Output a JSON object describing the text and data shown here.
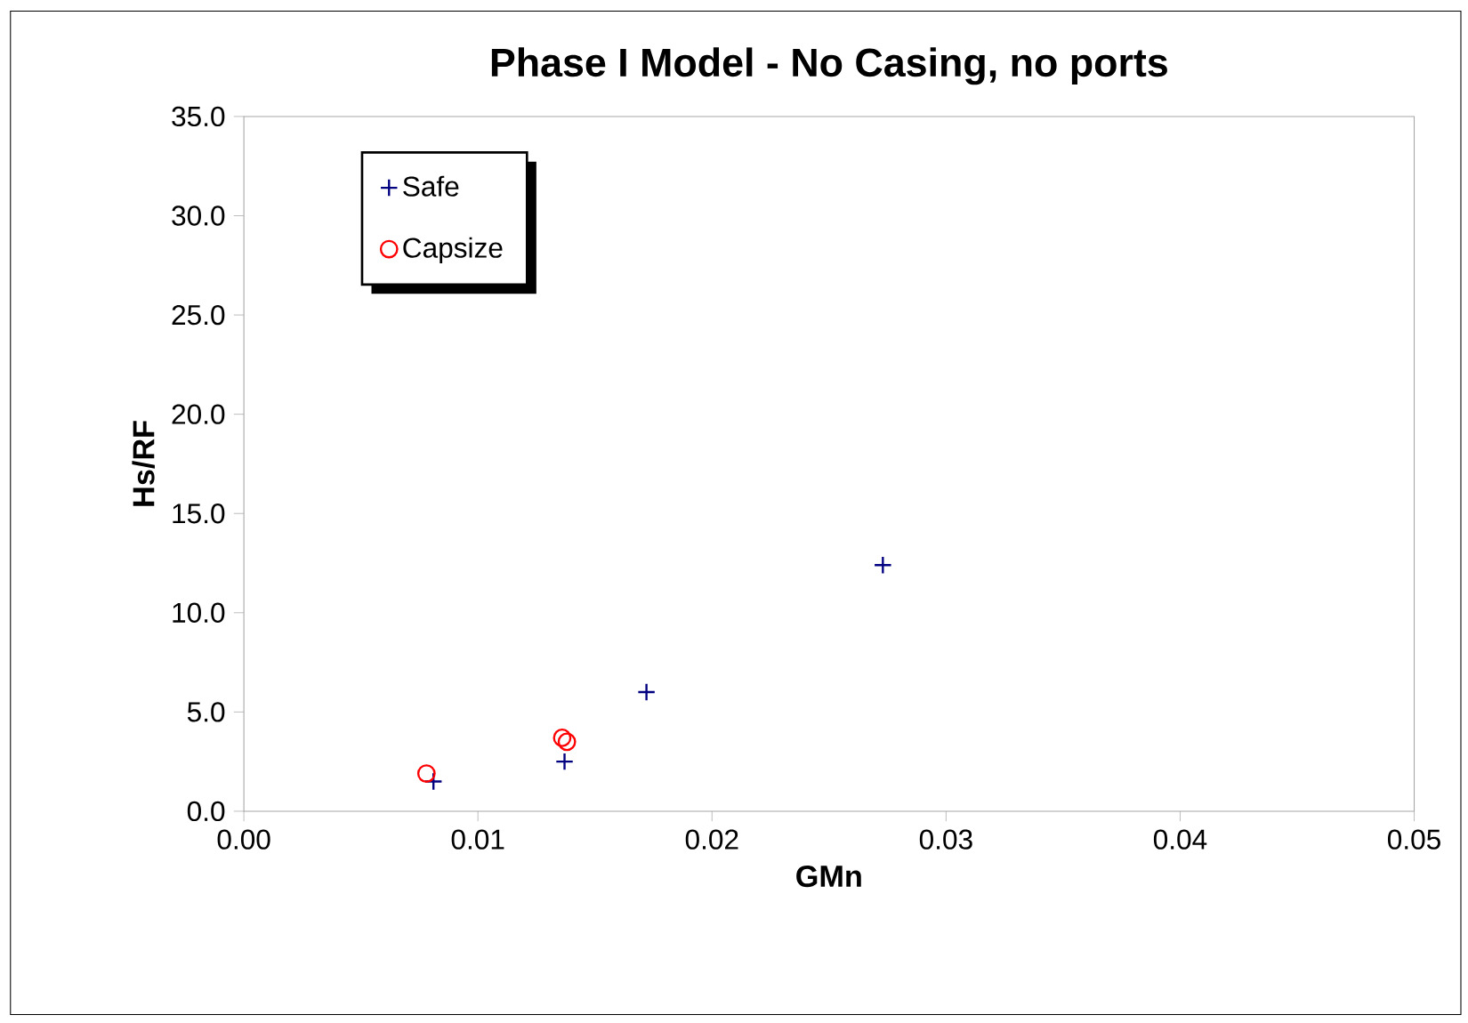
{
  "chart_data": {
    "type": "scatter",
    "title": "Phase I Model - No Casing, no ports",
    "xlabel": "GMn",
    "ylabel": "Hs/RF",
    "xlim": [
      0,
      0.05
    ],
    "xticks": [
      {
        "value": 0,
        "label": "0.00"
      },
      {
        "value": 0.01,
        "label": "0.01"
      },
      {
        "value": 0.02,
        "label": "0.02"
      },
      {
        "value": 0.03,
        "label": "0.03"
      },
      {
        "value": 0.04,
        "label": "0.04"
      },
      {
        "value": 0.05,
        "label": "0.05"
      }
    ],
    "ylim": [
      0,
      35
    ],
    "yticks": [
      {
        "value": 0,
        "label": "0.0"
      },
      {
        "value": 5,
        "label": "5.0"
      },
      {
        "value": 10,
        "label": "10.0"
      },
      {
        "value": 15,
        "label": "15.0"
      },
      {
        "value": 20,
        "label": "20.0"
      },
      {
        "value": 25,
        "label": "25.0"
      },
      {
        "value": 30,
        "label": "30.0"
      },
      {
        "value": 35,
        "label": "35.0"
      }
    ],
    "legend": "top left",
    "grid": false,
    "series": [
      {
        "name": "Safe",
        "color": "#000080",
        "marker": "cross",
        "x": [
          0.0081,
          0.0137,
          0.0172,
          0.0273
        ],
        "values": [
          1.5,
          2.5,
          6.0,
          12.4
        ]
      },
      {
        "name": "Capsize",
        "color": "#ff0000",
        "marker": "circle",
        "x": [
          0.0078,
          0.0136,
          0.0138
        ],
        "values": [
          1.9,
          3.7,
          3.5
        ]
      }
    ]
  }
}
